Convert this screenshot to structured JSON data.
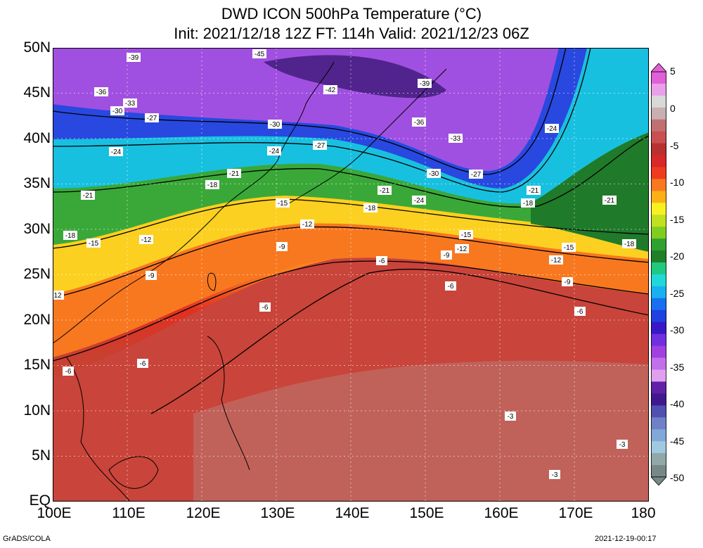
{
  "title": {
    "line1": "DWD ICON 500hPa Temperature (°C)",
    "line2": "Init: 2021/12/18 12Z  FT: 114h  Valid: 2021/12/23 06Z"
  },
  "y_axis": {
    "ticks": [
      "50N",
      "45N",
      "40N",
      "35N",
      "30N",
      "25N",
      "20N",
      "15N",
      "10N",
      "5N",
      "EQ"
    ],
    "values": [
      50,
      45,
      40,
      35,
      30,
      25,
      20,
      15,
      10,
      5,
      0
    ]
  },
  "x_axis": {
    "ticks": [
      "100E",
      "110E",
      "120E",
      "130E",
      "140E",
      "150E",
      "160E",
      "170E",
      "180"
    ],
    "values": [
      100,
      110,
      120,
      130,
      140,
      150,
      160,
      170,
      180
    ]
  },
  "colorbar": {
    "labels": [
      "5",
      "0",
      "-5",
      "-10",
      "-15",
      "-20",
      "-25",
      "-30",
      "-35",
      "-40",
      "-45",
      "-50"
    ],
    "values": [
      5,
      0,
      -5,
      -10,
      -15,
      -20,
      -25,
      -30,
      -35,
      -40,
      -45,
      -50
    ],
    "colors": [
      "#e060d8",
      "#e8a0e8",
      "#d8d8d8",
      "#c8b0b0",
      "#c07070",
      "#c85050",
      "#b83030",
      "#d82828",
      "#f03c1e",
      "#f87820",
      "#fcb018",
      "#f8f020",
      "#c0e020",
      "#80cc20",
      "#30a030",
      "#208028",
      "#20c880",
      "#20d8d8",
      "#18b0f0",
      "#1870f0",
      "#2040e0",
      "#3818c8",
      "#7030e0",
      "#a040e0",
      "#c070e8",
      "#e0a0f0",
      "#6020a8",
      "#401890",
      "#5050b0",
      "#7080c8",
      "#80a8d8",
      "#a0c8e0",
      "#90a8a8",
      "#788888"
    ]
  },
  "contour_labels": [
    "-45",
    "-42",
    "-39",
    "-36",
    "-33",
    "-30",
    "-27",
    "-24",
    "-21",
    "-18",
    "-15",
    "-12",
    "-9",
    "-6",
    "-3",
    "12"
  ],
  "footer": {
    "left": "GrADS/COLA",
    "right": "2021-12-19-00:17"
  }
}
